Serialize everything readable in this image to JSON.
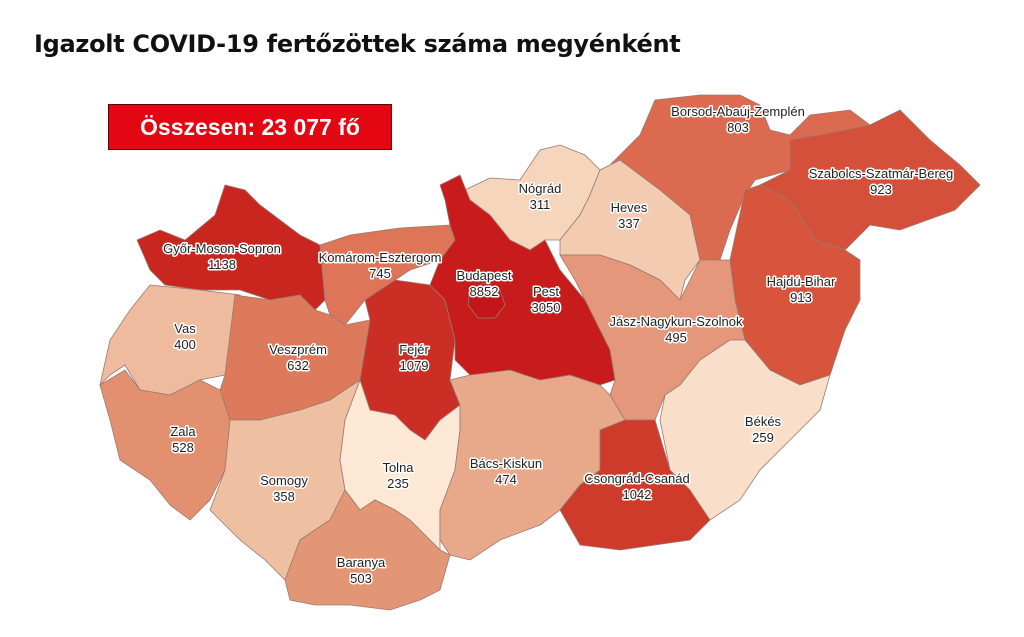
{
  "title": "Igazolt COVID-19 fertőzöttek száma megyénként",
  "total_label": "Összesen: 23 077 fő",
  "colors": {
    "total_box": "#e30613"
  },
  "counties": [
    {
      "name": "Borsod-Abaúj-Zemplén",
      "value": "803",
      "color": "#dc6a50"
    },
    {
      "name": "Szabolcs-Szatmár-Bereg",
      "value": "923",
      "color": "#d4503a"
    },
    {
      "name": "Nógrád",
      "value": "311",
      "color": "#f6d5bd"
    },
    {
      "name": "Heves",
      "value": "337",
      "color": "#f3cbb0"
    },
    {
      "name": "Győr-Moson-Sopron",
      "value": "1138",
      "color": "#c9261f"
    },
    {
      "name": "Komárom-Esztergom",
      "value": "745",
      "color": "#de7458"
    },
    {
      "name": "Budapest",
      "value": "8852",
      "color": "#c4151a"
    },
    {
      "name": "Pest",
      "value": "3050",
      "color": "#c81c1c"
    },
    {
      "name": "Hajdú-Bihar",
      "value": "913",
      "color": "#d7553d"
    },
    {
      "name": "Jász-Nagykun-Szolnok",
      "value": "495",
      "color": "#e4977a"
    },
    {
      "name": "Vas",
      "value": "400",
      "color": "#efbb9e"
    },
    {
      "name": "Veszprém",
      "value": "632",
      "color": "#de7a5c"
    },
    {
      "name": "Fejér",
      "value": "1079",
      "color": "#ca2e24"
    },
    {
      "name": "Zala",
      "value": "528",
      "color": "#e2906f"
    },
    {
      "name": "Somogy",
      "value": "358",
      "color": "#efbfa2"
    },
    {
      "name": "Tolna",
      "value": "235",
      "color": "#fde8d6"
    },
    {
      "name": "Bács-Kiskun",
      "value": "474",
      "color": "#e8a98b"
    },
    {
      "name": "Csongrád-Csanád",
      "value": "1042",
      "color": "#cf3b2a"
    },
    {
      "name": "Békés",
      "value": "259",
      "color": "#f9dfc9"
    },
    {
      "name": "Baranya",
      "value": "503",
      "color": "#e39676"
    }
  ]
}
